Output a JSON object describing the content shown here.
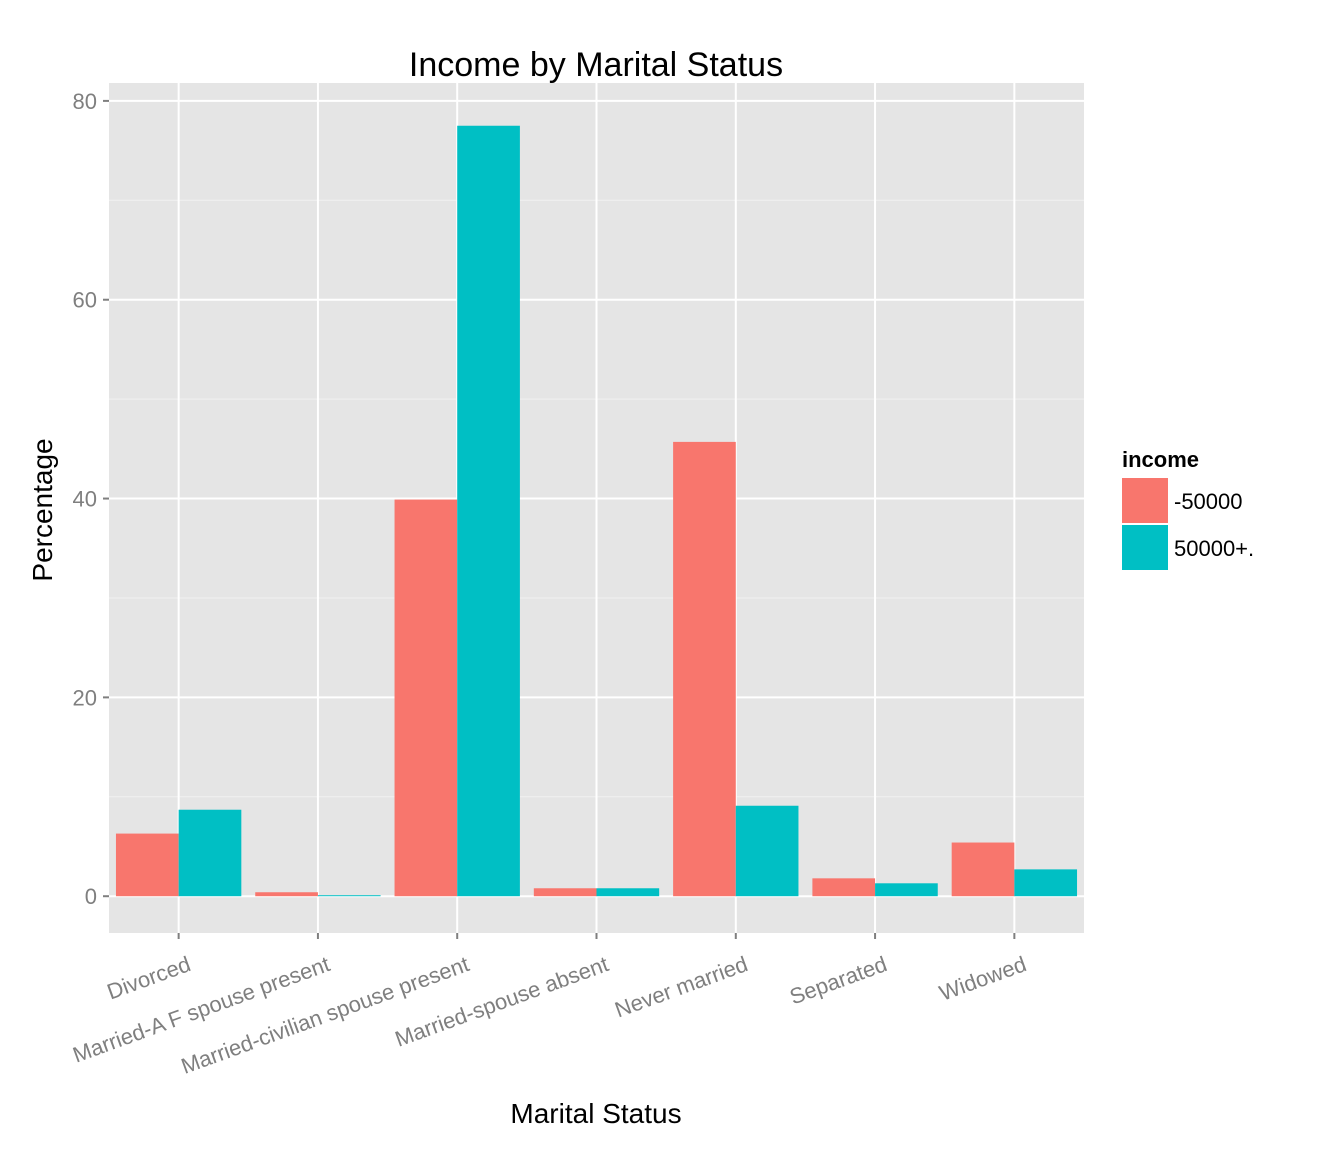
{
  "chart_data": {
    "type": "bar",
    "title": "Income by Marital Status",
    "xlabel": "Marital Status",
    "ylabel": "Percentage",
    "categories": [
      "Divorced",
      "Married-A F spouse present",
      "Married-civilian spouse present",
      "Married-spouse absent",
      "Never married",
      "Separated",
      "Widowed"
    ],
    "series": [
      {
        "name": "-50000",
        "color": "#F8766D",
        "values": [
          6.3,
          0.4,
          39.9,
          0.8,
          45.7,
          1.8,
          5.4
        ]
      },
      {
        "name": "50000+.",
        "color": "#00BFC4",
        "values": [
          8.7,
          0.1,
          77.5,
          0.8,
          9.1,
          1.3,
          2.7
        ]
      }
    ],
    "ylim": [
      -3.7,
      81.8
    ],
    "yticks": [
      0,
      20,
      40,
      60,
      80
    ],
    "yticks_minor": [
      10,
      30,
      50,
      70
    ],
    "grid": true,
    "legend": {
      "title": "income",
      "position": "right"
    },
    "panel_background": "#E5E5E5",
    "grid_color": "#FFFFFF"
  }
}
